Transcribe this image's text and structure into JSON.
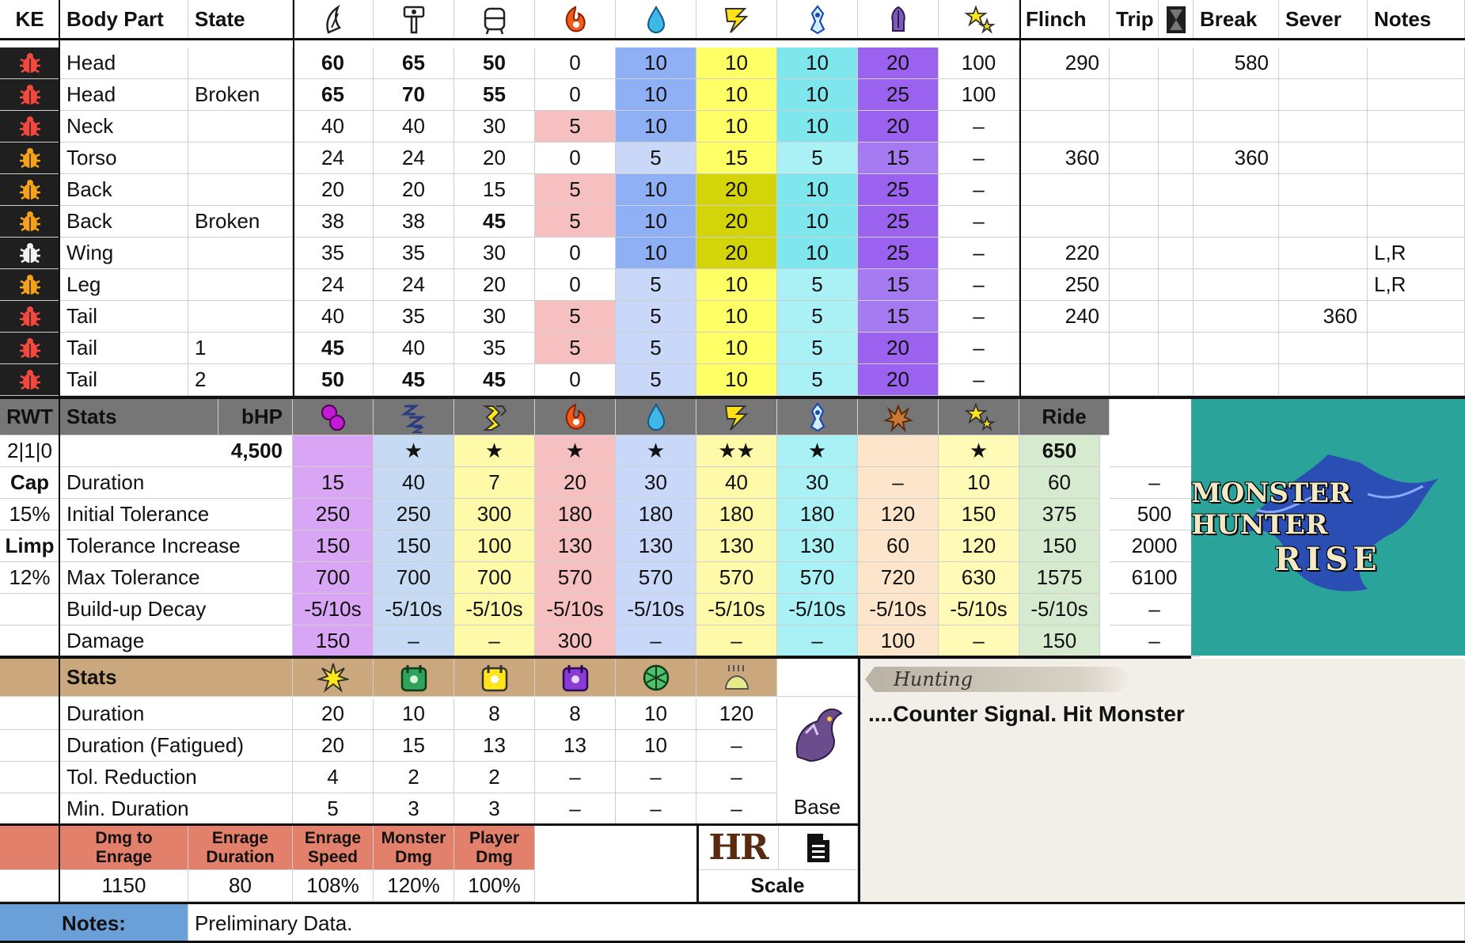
{
  "colors": {
    "fire": "#f7c0c0",
    "water": "#c9d7f9",
    "thunder": "#ffff66",
    "thunder_dark": "#d4d40a",
    "ice": "#aaf1f6",
    "dragon": "#a06cf0",
    "poison": "#d9a6f5",
    "sleep": "#c6dbf3",
    "para": "#fffaaa",
    "blast": "#fde5cc",
    "stun": "#fffab6",
    "exhaust": "#d6ead0",
    "header_grey": "#767676",
    "tan": "#caa77c",
    "salmon": "#e2806b",
    "notes_blue": "#6a9fd8",
    "teal": "#2aa39b",
    "parchment": "#f2efe8"
  },
  "hitzones": {
    "headers": {
      "ke": "KE",
      "part": "Body Part",
      "state": "State",
      "flinch": "Flinch",
      "trip": "Trip",
      "break": "Break",
      "sever": "Sever",
      "notes": "Notes"
    },
    "header_icons": [
      "sever-icon",
      "blunt-icon",
      "shot-icon",
      "fire-icon",
      "water-icon",
      "thunder-icon",
      "ice-icon",
      "dragon-icon",
      "stun-icon"
    ],
    "rows": [
      {
        "part": "Head",
        "state": "",
        "v": [
          "60",
          "65",
          "50",
          "0",
          "10",
          "10",
          "10",
          "20",
          "100"
        ],
        "flinch": "290",
        "trip": "",
        "break": "580",
        "sever": "",
        "notes": "",
        "bug": "red"
      },
      {
        "part": "Head",
        "state": "Broken",
        "v": [
          "65",
          "70",
          "55",
          "0",
          "10",
          "10",
          "10",
          "25",
          "100"
        ],
        "flinch": "",
        "trip": "",
        "break": "",
        "sever": "",
        "notes": "",
        "bug": "red"
      },
      {
        "part": "Neck",
        "state": "",
        "v": [
          "40",
          "40",
          "30",
          "5",
          "10",
          "10",
          "10",
          "20",
          "–"
        ],
        "flinch": "",
        "trip": "",
        "break": "",
        "sever": "",
        "notes": "",
        "bug": "red"
      },
      {
        "part": "Torso",
        "state": "",
        "v": [
          "24",
          "24",
          "20",
          "0",
          "5",
          "15",
          "5",
          "15",
          "–"
        ],
        "flinch": "360",
        "trip": "",
        "break": "360",
        "sever": "",
        "notes": "",
        "bug": "orange"
      },
      {
        "part": "Back",
        "state": "",
        "v": [
          "20",
          "20",
          "15",
          "5",
          "10",
          "20",
          "10",
          "25",
          "–"
        ],
        "flinch": "",
        "trip": "",
        "break": "",
        "sever": "",
        "notes": "",
        "bug": "orange"
      },
      {
        "part": "Back",
        "state": "Broken",
        "v": [
          "38",
          "38",
          "45",
          "5",
          "10",
          "20",
          "10",
          "25",
          "–"
        ],
        "flinch": "",
        "trip": "",
        "break": "",
        "sever": "",
        "notes": "",
        "bug": "orange"
      },
      {
        "part": "Wing",
        "state": "",
        "v": [
          "35",
          "35",
          "30",
          "0",
          "10",
          "20",
          "10",
          "25",
          "–"
        ],
        "flinch": "220",
        "trip": "",
        "break": "",
        "sever": "",
        "notes": "L,R",
        "bug": "white"
      },
      {
        "part": "Leg",
        "state": "",
        "v": [
          "24",
          "24",
          "20",
          "0",
          "5",
          "10",
          "5",
          "15",
          "–"
        ],
        "flinch": "250",
        "trip": "",
        "break": "",
        "sever": "",
        "notes": "L,R",
        "bug": "orange"
      },
      {
        "part": "Tail",
        "state": "",
        "v": [
          "40",
          "35",
          "30",
          "5",
          "5",
          "10",
          "5",
          "15",
          "–"
        ],
        "flinch": "240",
        "trip": "",
        "break": "",
        "sever": "360",
        "notes": "",
        "bug": "red"
      },
      {
        "part": "Tail",
        "state": "1",
        "v": [
          "45",
          "40",
          "35",
          "5",
          "5",
          "10",
          "5",
          "20",
          "–"
        ],
        "flinch": "",
        "trip": "",
        "break": "",
        "sever": "",
        "notes": "",
        "bug": "red"
      },
      {
        "part": "Tail",
        "state": "2",
        "v": [
          "50",
          "45",
          "45",
          "0",
          "5",
          "10",
          "5",
          "20",
          "–"
        ],
        "flinch": "",
        "trip": "",
        "break": "",
        "sever": "",
        "notes": "",
        "bug": "red"
      }
    ]
  },
  "status": {
    "rwt": "RWT",
    "stats": "Stats",
    "bhp": "bHP",
    "ride": "Ride",
    "rwt_value": "2|1|0",
    "bhp_value": "4,500",
    "side_labels": [
      "Cap",
      "15%",
      "Limp",
      "12%"
    ],
    "header_icons": [
      "poison-icon",
      "sleep-icon",
      "paralysis-icon",
      "fire-icon",
      "water-icon",
      "thunder-icon",
      "ice-icon",
      "blast-icon",
      "stun-icon",
      "exhaust-icon"
    ],
    "stars": [
      "",
      "★",
      "★",
      "★",
      "★",
      "★★",
      "★",
      "",
      "★",
      "650",
      ""
    ],
    "rows": [
      {
        "label": "Duration",
        "v": [
          "15",
          "40",
          "7",
          "20",
          "30",
          "40",
          "30",
          "–",
          "10",
          "60",
          "–"
        ]
      },
      {
        "label": "Initial Tolerance",
        "v": [
          "250",
          "250",
          "300",
          "180",
          "180",
          "180",
          "180",
          "120",
          "150",
          "375",
          "500"
        ]
      },
      {
        "label": "Tolerance Increase",
        "v": [
          "150",
          "150",
          "100",
          "130",
          "130",
          "130",
          "130",
          "60",
          "120",
          "150",
          "2000"
        ]
      },
      {
        "label": "Max Tolerance",
        "v": [
          "700",
          "700",
          "700",
          "570",
          "570",
          "570",
          "570",
          "720",
          "630",
          "1575",
          "6100"
        ]
      },
      {
        "label": "Build-up Decay",
        "v": [
          "-5/10s",
          "-5/10s",
          "-5/10s",
          "-5/10s",
          "-5/10s",
          "-5/10s",
          "-5/10s",
          "-5/10s",
          "-5/10s",
          "-5/10s",
          "–"
        ]
      },
      {
        "label": "Damage",
        "v": [
          "150",
          "–",
          "–",
          "300",
          "–",
          "–",
          "–",
          "100",
          "–",
          "150",
          "–"
        ]
      }
    ]
  },
  "logo": {
    "line1": "MONSTER HUNTER",
    "line2": "RISE"
  },
  "items": {
    "stats": "Stats",
    "header_icons": [
      "flash-icon",
      "shock-trap-icon",
      "pitfall-trap-icon",
      "tranq-icon",
      "net-icon",
      "dung-pod-icon"
    ],
    "rows": [
      {
        "label": "Duration",
        "v": [
          "20",
          "10",
          "8",
          "8",
          "10",
          "120"
        ]
      },
      {
        "label": "Duration (Fatigued)",
        "v": [
          "20",
          "15",
          "13",
          "13",
          "10",
          "–"
        ]
      },
      {
        "label": "Tol. Reduction",
        "v": [
          "4",
          "2",
          "2",
          "–",
          "–",
          "–"
        ]
      },
      {
        "label": "Min. Duration",
        "v": [
          "5",
          "3",
          "3",
          "–",
          "–",
          "–"
        ]
      }
    ],
    "base_label": "Base"
  },
  "enrage": {
    "headers": [
      [
        "Dmg to",
        "Enrage"
      ],
      [
        "Enrage",
        "Duration"
      ],
      [
        "Enrage",
        "Speed"
      ],
      [
        "Monster",
        "Dmg"
      ],
      [
        "Player",
        "Dmg"
      ]
    ],
    "values": [
      "1150",
      "80",
      "108%",
      "120%",
      "100%"
    ],
    "scale_label": "Scale",
    "hr_label": "HR"
  },
  "hunting": {
    "tag": "Hunting",
    "text": "....Counter Signal. Hit Monster"
  },
  "notes": {
    "label": "Notes:",
    "text": "Preliminary Data."
  }
}
